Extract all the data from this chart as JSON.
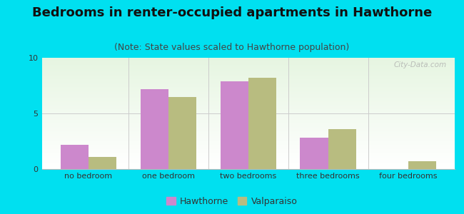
{
  "title": "Bedrooms in renter-occupied apartments in Hawthorne",
  "subtitle": "(Note: State values scaled to Hawthorne population)",
  "categories": [
    "no bedroom",
    "one bedroom",
    "two bedrooms",
    "three bedrooms",
    "four bedrooms"
  ],
  "hawthorne_values": [
    2.2,
    7.2,
    7.9,
    2.8,
    0.0
  ],
  "valparaiso_values": [
    1.1,
    6.5,
    8.2,
    3.6,
    0.7
  ],
  "hawthorne_color": "#cc88cc",
  "valparaiso_color": "#b8bc80",
  "bar_width": 0.35,
  "ylim": [
    0,
    10
  ],
  "yticks": [
    0,
    5,
    10
  ],
  "background_outer": "#00e0f0",
  "grid_color": "#cccccc",
  "title_fontsize": 13,
  "subtitle_fontsize": 9,
  "tick_label_fontsize": 8,
  "legend_label_hawthorne": "Hawthorne",
  "legend_label_valparaiso": "Valparaiso",
  "watermark": "City-Data.com"
}
